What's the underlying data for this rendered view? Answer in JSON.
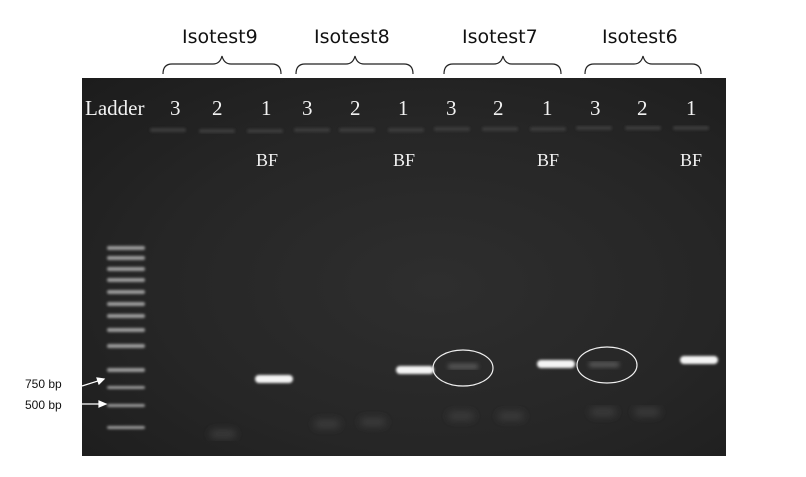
{
  "groups": [
    {
      "name": "Isotest9"
    },
    {
      "name": "Isotest8"
    },
    {
      "name": "Isotest7"
    },
    {
      "name": "Isotest6"
    }
  ],
  "ladder_label": "Ladder",
  "lanes": [
    "3",
    "2",
    "1",
    "3",
    "2",
    "1",
    "3",
    "2",
    "1",
    "3",
    "2",
    "1"
  ],
  "bf_label": "BF",
  "markers": [
    {
      "label": "750 bp"
    },
    {
      "label": "500 bp"
    }
  ],
  "colors": {
    "gel_background": "#262626",
    "band": "#f4f4f4",
    "annotation": "#111111"
  }
}
